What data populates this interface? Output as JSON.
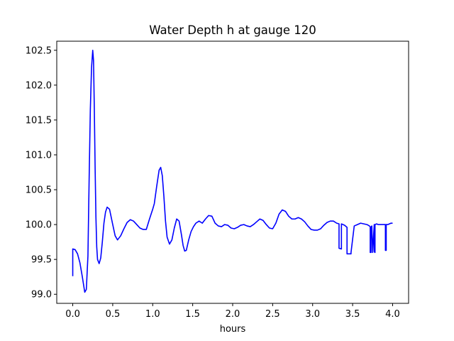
{
  "chart_data": {
    "type": "line",
    "title": "Water Depth h at gauge 120",
    "xlabel": "hours",
    "ylabel": "",
    "xlim": [
      -0.2,
      4.2
    ],
    "ylim": [
      98.87,
      102.63
    ],
    "grid": false,
    "xticks": [
      0.0,
      0.5,
      1.0,
      1.5,
      2.0,
      2.5,
      3.0,
      3.5,
      4.0
    ],
    "xtick_labels": [
      "0.0",
      "0.5",
      "1.0",
      "1.5",
      "2.0",
      "2.5",
      "3.0",
      "3.5",
      "4.0"
    ],
    "yticks": [
      99.0,
      99.5,
      100.0,
      100.5,
      101.0,
      101.5,
      102.0,
      102.5
    ],
    "ytick_labels": [
      "99.0",
      "99.5",
      "100.0",
      "100.5",
      "101.0",
      "101.5",
      "102.0",
      "102.5"
    ],
    "series": [
      {
        "color": "#0000ff",
        "x": [
          0.0,
          0.0,
          0.03,
          0.06,
          0.09,
          0.12,
          0.15,
          0.17,
          0.19,
          0.205,
          0.22,
          0.235,
          0.25,
          0.26,
          0.27,
          0.28,
          0.29,
          0.3,
          0.31,
          0.33,
          0.35,
          0.37,
          0.39,
          0.41,
          0.43,
          0.46,
          0.5,
          0.53,
          0.56,
          0.6,
          0.64,
          0.68,
          0.72,
          0.76,
          0.8,
          0.84,
          0.88,
          0.92,
          0.96,
          1.0,
          1.02,
          1.05,
          1.08,
          1.1,
          1.12,
          1.14,
          1.16,
          1.18,
          1.21,
          1.24,
          1.27,
          1.3,
          1.33,
          1.36,
          1.38,
          1.4,
          1.42,
          1.45,
          1.48,
          1.51,
          1.54,
          1.58,
          1.62,
          1.66,
          1.7,
          1.74,
          1.78,
          1.82,
          1.86,
          1.9,
          1.94,
          1.98,
          2.02,
          2.06,
          2.1,
          2.14,
          2.18,
          2.22,
          2.26,
          2.3,
          2.34,
          2.38,
          2.42,
          2.46,
          2.5,
          2.54,
          2.58,
          2.62,
          2.66,
          2.7,
          2.74,
          2.78,
          2.82,
          2.86,
          2.9,
          2.94,
          2.98,
          3.02,
          3.06,
          3.1,
          3.14,
          3.18,
          3.22,
          3.26,
          3.3,
          3.33,
          3.33,
          3.36,
          3.36,
          3.4,
          3.43,
          3.43,
          3.48,
          3.48,
          3.52,
          3.56,
          3.6,
          3.64,
          3.68,
          3.71,
          3.72,
          3.72,
          3.73,
          3.73,
          3.74,
          3.75,
          3.75,
          3.77,
          3.77,
          3.78,
          3.78,
          3.8,
          3.82,
          3.84,
          3.86,
          3.88,
          3.9,
          3.91,
          3.91,
          3.92,
          3.92,
          3.94,
          3.96,
          3.98,
          4.0
        ],
        "y": [
          99.26,
          99.65,
          99.64,
          99.58,
          99.45,
          99.25,
          99.03,
          99.07,
          99.55,
          100.65,
          101.65,
          102.25,
          102.5,
          102.35,
          101.65,
          100.8,
          100.1,
          99.68,
          99.5,
          99.44,
          99.52,
          99.75,
          100.02,
          100.18,
          100.25,
          100.22,
          100.0,
          99.84,
          99.78,
          99.84,
          99.94,
          100.03,
          100.07,
          100.05,
          100.0,
          99.95,
          99.93,
          99.93,
          100.08,
          100.22,
          100.3,
          100.55,
          100.78,
          100.82,
          100.7,
          100.4,
          100.05,
          99.82,
          99.72,
          99.78,
          99.95,
          100.08,
          100.05,
          99.85,
          99.7,
          99.62,
          99.63,
          99.78,
          99.9,
          99.97,
          100.02,
          100.05,
          100.02,
          100.08,
          100.13,
          100.12,
          100.02,
          99.98,
          99.97,
          100.0,
          99.99,
          99.95,
          99.94,
          99.96,
          99.99,
          100.0,
          99.98,
          99.97,
          100.0,
          100.04,
          100.08,
          100.06,
          100.0,
          99.95,
          99.94,
          100.02,
          100.15,
          100.21,
          100.19,
          100.12,
          100.08,
          100.08,
          100.1,
          100.08,
          100.04,
          99.98,
          99.93,
          99.92,
          99.92,
          99.94,
          99.99,
          100.03,
          100.05,
          100.05,
          100.02,
          100.01,
          99.66,
          99.65,
          100.01,
          99.99,
          99.96,
          99.58,
          99.58,
          99.6,
          99.98,
          100.0,
          100.02,
          100.01,
          100.0,
          99.98,
          99.97,
          99.6,
          99.6,
          99.96,
          99.98,
          99.6,
          99.61,
          100.0,
          99.61,
          99.6,
          100.0,
          100.01,
          100.0,
          100.0,
          100.0,
          100.0,
          100.0,
          100.0,
          99.63,
          99.63,
          100.0,
          100.0,
          100.01,
          100.02,
          100.02
        ]
      }
    ]
  }
}
